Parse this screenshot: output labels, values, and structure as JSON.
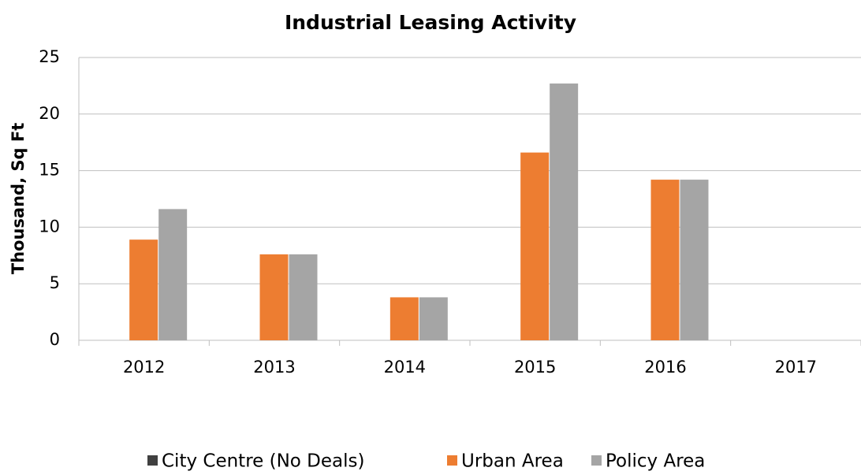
{
  "chart_data": {
    "type": "bar",
    "title": "Industrial Leasing Activity",
    "y_label": "Thousand, Sq Ft",
    "categories": [
      "2012",
      "2013",
      "2014",
      "2015",
      "2016",
      "2017"
    ],
    "series": [
      {
        "name": "City Centre (No Deals)",
        "color": "#404040",
        "values": [
          0,
          0,
          0,
          0,
          0,
          0
        ]
      },
      {
        "name": "Urban Area",
        "color": "#ed7d31",
        "values": [
          8.9,
          7.6,
          3.8,
          16.6,
          14.2,
          0
        ]
      },
      {
        "name": "Policy Area",
        "color": "#a5a5a5",
        "values": [
          11.6,
          7.6,
          3.8,
          22.7,
          14.2,
          0
        ]
      }
    ],
    "ylim": [
      0,
      25
    ],
    "yticks": [
      0,
      5,
      10,
      15,
      20,
      25
    ],
    "grid": true,
    "legend": "bottom"
  }
}
